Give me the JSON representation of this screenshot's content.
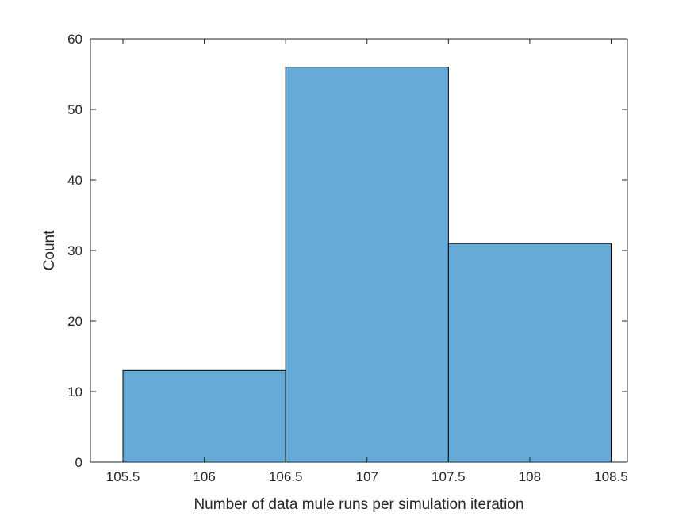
{
  "chart_data": {
    "type": "bar",
    "title": "",
    "xlabel": "Number of data mule runs per simulation iteration",
    "ylabel": "Count",
    "bins": [
      {
        "x0": 105.5,
        "x1": 106.5,
        "value": 13
      },
      {
        "x0": 106.5,
        "x1": 107.5,
        "value": 56
      },
      {
        "x0": 107.5,
        "x1": 108.5,
        "value": 31
      }
    ],
    "xlim": [
      105.3,
      108.6
    ],
    "ylim": [
      0,
      60
    ],
    "xticks": [
      105.5,
      106,
      106.5,
      107,
      107.5,
      108,
      108.5
    ],
    "xtick_labels": [
      "105.5",
      "106",
      "106.5",
      "107",
      "107.5",
      "108",
      "108.5"
    ],
    "yticks": [
      0,
      10,
      20,
      30,
      40,
      50,
      60
    ],
    "ytick_labels": [
      "0",
      "10",
      "20",
      "30",
      "40",
      "50",
      "60"
    ],
    "grid": false,
    "colors": {
      "bar_fill": "#66aad8",
      "bar_edge": "#000000",
      "axis": "#262626"
    }
  }
}
